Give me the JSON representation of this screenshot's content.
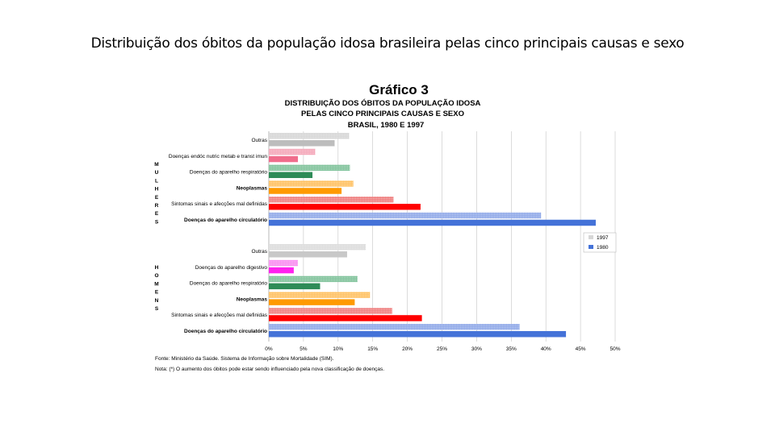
{
  "slide": {
    "title": "Distribuição dos óbitos da população idosa brasileira pelas cinco principais causas e sexo"
  },
  "chart_data": {
    "type": "bar",
    "orientation": "horizontal",
    "title": "Gráfico 3",
    "subtitle_lines": [
      "DISTRIBUIÇÃO DOS ÓBITOS DA POPULAÇÃO IDOSA",
      "PELAS CINCO PRINCIPAIS CAUSAS E SEXO",
      "BRASIL, 1980 E 1997"
    ],
    "xlim": [
      0,
      50
    ],
    "x_ticks": [
      "0%",
      "5%",
      "10%",
      "15%",
      "20%",
      "25%",
      "30%",
      "35%",
      "40%",
      "45%",
      "50%"
    ],
    "grid": true,
    "legend": {
      "position": "right",
      "entries": [
        "1997",
        "1980"
      ]
    },
    "groups": [
      {
        "label": "MULHERES",
        "categories": [
          "Outras",
          "Doenças endóc nutric metab e transt imun",
          "Doenças do aparelho respiratório",
          "Neoplasmas",
          "Sintomas sinais e afecções mal definidas",
          "Doenças do aparelho circulatório"
        ],
        "bold_categories": [
          false,
          false,
          false,
          true,
          false,
          true
        ],
        "series": [
          {
            "name": "1997",
            "values": [
              11.6,
              6.7,
              11.7,
              12.2,
              18.0,
              39.3
            ]
          },
          {
            "name": "1980",
            "values": [
              9.5,
              4.2,
              6.3,
              10.5,
              21.9,
              47.2
            ]
          }
        ],
        "colors_1980": [
          "#bdbdbd",
          "#f06d8c",
          "#2e8b57",
          "#ff9a00",
          "#ff0000",
          "#4472d8"
        ],
        "colors_1997": [
          "#d6d6d6",
          "#f4a6b8",
          "#7fc29a",
          "#ffc060",
          "#ef7e7e",
          "#8fa8e8"
        ]
      },
      {
        "label": "HOMENS",
        "categories": [
          "Outras",
          "Doenças do aparelho digestivo",
          "Doenças do aparelho respiratório",
          "Neoplasmas",
          "Sintomas sinais e afecções mal definidas",
          "Doenças do aparelho circulatório"
        ],
        "bold_categories": [
          false,
          false,
          false,
          true,
          false,
          true
        ],
        "series": [
          {
            "name": "1997",
            "values": [
              14.0,
              4.2,
              12.8,
              14.6,
              17.8,
              36.2
            ]
          },
          {
            "name": "1980",
            "values": [
              11.3,
              3.6,
              7.4,
              12.4,
              22.1,
              42.9
            ]
          }
        ],
        "colors_1980": [
          "#c8c8c8",
          "#ff22ee",
          "#2e8b57",
          "#ff9a00",
          "#ff0000",
          "#4472d8"
        ],
        "colors_1997": [
          "#dcdcdc",
          "#f98cf0",
          "#7fc29a",
          "#ffc060",
          "#ef7e7e",
          "#8fa8e8"
        ]
      }
    ],
    "notes": [
      "Fonte: Ministério da Saúde. Sistema de Informação sobre Mortalidade (SIM).",
      "Nota: (*) O aumento dos óbitos pode estar sendo influenciado pela nova classificação de doenças."
    ]
  }
}
